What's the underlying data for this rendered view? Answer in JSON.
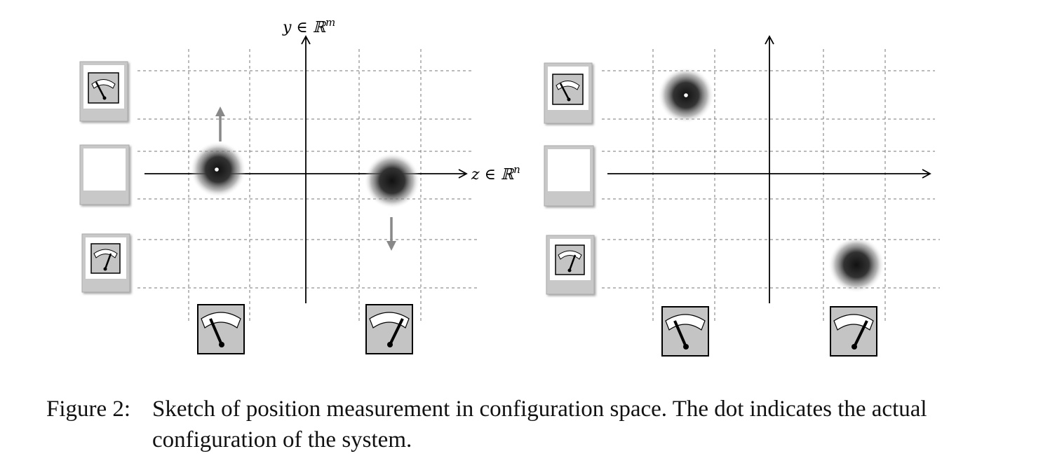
{
  "figure": {
    "left_panel": {
      "y_axis_label": "y ∈ ℝ",
      "y_axis_sup": "m",
      "x_axis_label": "z ∈ ℝ",
      "x_axis_sup": "n",
      "blobs": 2,
      "dot": "actual configuration (left blob)"
    },
    "right_panel": {
      "blobs": 2
    }
  },
  "caption": {
    "label": "Figure 2:",
    "text": "Sketch of position measurement in configuration space. The dot indicates the actual configuration of the system."
  }
}
